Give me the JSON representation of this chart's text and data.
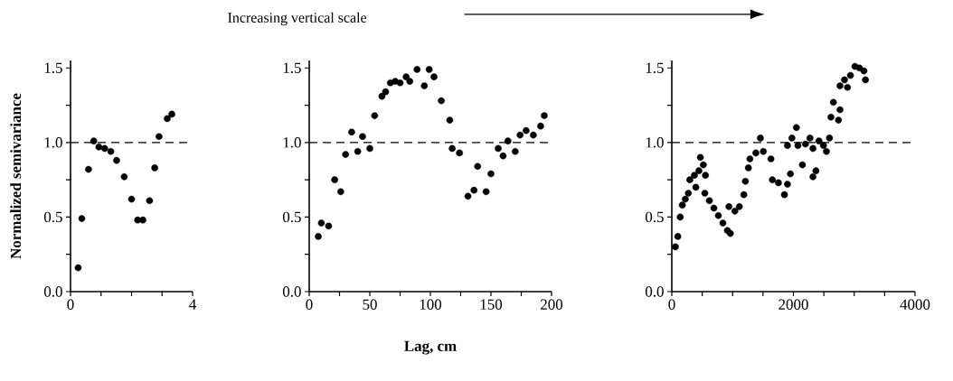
{
  "chart_data": [
    {
      "type": "scatter",
      "ylabel": "Normalized semivariance",
      "color": "#000000",
      "marker": "circle",
      "grid": false,
      "x": [
        0.25,
        0.37,
        0.59,
        0.76,
        0.93,
        1.12,
        1.32,
        1.51,
        1.76,
        2.0,
        2.2,
        2.37,
        2.59,
        2.76,
        2.9,
        3.17,
        3.32
      ],
      "values": [
        0.16,
        0.49,
        0.82,
        1.01,
        0.97,
        0.96,
        0.94,
        0.88,
        0.77,
        0.62,
        0.48,
        0.48,
        0.61,
        0.83,
        1.04,
        1.16,
        1.19
      ],
      "xlim": [
        0,
        4
      ],
      "ylim": [
        0,
        1.55
      ],
      "xticks": [
        0,
        {
          "value": 1,
          "label": null
        },
        {
          "value": 2,
          "label": null
        },
        {
          "value": 3,
          "label": null
        },
        4
      ],
      "yticks": [
        {
          "value": 0,
          "label": "0.0"
        },
        {
          "value": 0.25,
          "label": null
        },
        {
          "value": 0.5,
          "label": "0.5"
        },
        {
          "value": 0.75,
          "label": null
        },
        {
          "value": 1,
          "label": "1.0"
        },
        {
          "value": 1.25,
          "label": null
        },
        {
          "value": 1.5,
          "label": "1.5"
        }
      ],
      "ref_lines": [
        {
          "axis": "y",
          "value": 1,
          "line_style": "dashed"
        }
      ]
    },
    {
      "type": "scatter",
      "xlabel": "Lag, cm",
      "annotations": [
        "Increasing vertical scale"
      ],
      "color": "#000000",
      "marker": "circle",
      "grid": false,
      "x": [
        7.5,
        10,
        16,
        21,
        26,
        30,
        35,
        40,
        44,
        50,
        54,
        60,
        63,
        67,
        71,
        75,
        80,
        83,
        89,
        95,
        99,
        103,
        109,
        116,
        118,
        124,
        131,
        136,
        139,
        146,
        150,
        156,
        160,
        164,
        170,
        174,
        179,
        185,
        191,
        194
      ],
      "values": [
        0.37,
        0.46,
        0.44,
        0.75,
        0.67,
        0.92,
        1.07,
        0.94,
        1.04,
        0.96,
        1.18,
        1.31,
        1.34,
        1.4,
        1.41,
        1.4,
        1.44,
        1.41,
        1.49,
        1.38,
        1.49,
        1.44,
        1.28,
        1.15,
        0.96,
        0.93,
        0.64,
        0.68,
        0.84,
        0.67,
        0.79,
        0.96,
        0.91,
        1.01,
        0.94,
        1.05,
        1.08,
        1.05,
        1.11,
        1.18
      ],
      "xlim": [
        0,
        200
      ],
      "ylim": [
        0,
        1.55
      ],
      "xticks": [
        0,
        {
          "value": 25,
          "label": null
        },
        50,
        {
          "value": 75,
          "label": null
        },
        100,
        {
          "value": 125,
          "label": null
        },
        150,
        {
          "value": 175,
          "label": null
        },
        200
      ],
      "yticks": [
        {
          "value": 0,
          "label": "0.0"
        },
        {
          "value": 0.25,
          "label": null
        },
        {
          "value": 0.5,
          "label": "0.5"
        },
        {
          "value": 0.75,
          "label": null
        },
        {
          "value": 1,
          "label": "1.0"
        },
        {
          "value": 1.25,
          "label": null
        },
        {
          "value": 1.5,
          "label": "1.5"
        }
      ],
      "ref_lines": [
        {
          "axis": "y",
          "value": 1,
          "line_style": "dashed"
        }
      ]
    },
    {
      "type": "scatter",
      "color": "#000000",
      "marker": "circle",
      "grid": false,
      "x": [
        59,
        99,
        138,
        173,
        222,
        272,
        296,
        371,
        395,
        445,
        469,
        519,
        553,
        543,
        618,
        692,
        766,
        840,
        914,
        963,
        939,
        1037,
        1111,
        1185,
        1210,
        1259,
        1284,
        1383,
        1457,
        1506,
        1630,
        1654,
        1753,
        1852,
        1902,
        1951,
        1902,
        1975,
        2049,
        2074,
        2148,
        2198,
        2272,
        2321,
        2321,
        2370,
        2420,
        2494,
        2543,
        2593,
        2617,
        2657,
        2741,
        2766,
        2766,
        2840,
        2889,
        2938,
        3012,
        3086,
        3160,
        3185
      ],
      "values": [
        0.3,
        0.37,
        0.5,
        0.58,
        0.62,
        0.66,
        0.75,
        0.78,
        0.7,
        0.81,
        0.9,
        0.85,
        0.78,
        0.66,
        0.61,
        0.56,
        0.51,
        0.46,
        0.41,
        0.39,
        0.57,
        0.54,
        0.57,
        0.65,
        0.74,
        0.83,
        0.89,
        0.93,
        1.03,
        0.94,
        0.89,
        0.75,
        0.73,
        0.65,
        0.72,
        0.79,
        0.98,
        1.03,
        1.1,
        0.98,
        0.85,
        0.99,
        1.03,
        0.96,
        0.77,
        0.81,
        1.01,
        0.98,
        0.94,
        1.03,
        1.17,
        1.27,
        1.15,
        1.22,
        1.38,
        1.42,
        1.37,
        1.45,
        1.51,
        1.5,
        1.48,
        1.42
      ],
      "xlim": [
        0,
        4000
      ],
      "ylim": [
        0,
        1.55
      ],
      "xticks": [
        0,
        {
          "value": 500,
          "label": null
        },
        {
          "value": 1000,
          "label": null
        },
        {
          "value": 1500,
          "label": null
        },
        2000,
        {
          "value": 2500,
          "label": null
        },
        {
          "value": 3000,
          "label": null
        },
        {
          "value": 3500,
          "label": null
        },
        4000
      ],
      "yticks": [
        {
          "value": 0,
          "label": "0.0"
        },
        {
          "value": 0.25,
          "label": null
        },
        {
          "value": 0.5,
          "label": "0.5"
        },
        {
          "value": 0.75,
          "label": null
        },
        {
          "value": 1,
          "label": "1.0"
        },
        {
          "value": 1.25,
          "label": null
        },
        {
          "value": 1.5,
          "label": "1.5"
        }
      ],
      "ref_lines": [
        {
          "axis": "y",
          "value": 1,
          "line_style": "dashed"
        }
      ]
    }
  ]
}
